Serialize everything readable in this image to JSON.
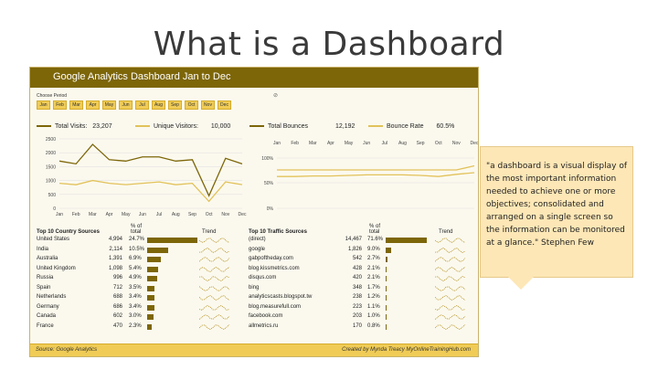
{
  "slide_title": "What is a Dashboard",
  "dashboard": {
    "title": "Google Analytics Dashboard Jan to Dec",
    "period_label": "Choose Period",
    "filter_icon": "filter-clear-icon",
    "months": [
      "Jan",
      "Feb",
      "Mar",
      "Apr",
      "May",
      "Jun",
      "Jul",
      "Aug",
      "Sep",
      "Oct",
      "Nov",
      "Dec"
    ],
    "kpis": {
      "total_visits_label": "Total Visits:",
      "total_visits_value": "23,207",
      "unique_visitors_label": "Unique Visitors:",
      "unique_visitors_value": "10,000",
      "total_bounces_label": "Total Bounces",
      "total_bounces_value": "12,192",
      "bounce_rate_label": "Bounce Rate",
      "bounce_rate_value": "60.5%"
    },
    "colors": {
      "brand": "#7d6608",
      "accent": "#f0cc56",
      "line_light": "#e2c25a"
    },
    "country_table": {
      "title": "Top 10 Country Sources",
      "pct_header": "% of total",
      "trend_header": "Trend",
      "rows": [
        {
          "name": "United States",
          "value": "4,994",
          "pct": "24.7%",
          "share": 0.247
        },
        {
          "name": "India",
          "value": "2,114",
          "pct": "10.5%",
          "share": 0.105
        },
        {
          "name": "Australia",
          "value": "1,391",
          "pct": "6.9%",
          "share": 0.069
        },
        {
          "name": "United Kingdom",
          "value": "1,098",
          "pct": "5.4%",
          "share": 0.054
        },
        {
          "name": "Russia",
          "value": "996",
          "pct": "4.9%",
          "share": 0.049
        },
        {
          "name": "Spain",
          "value": "712",
          "pct": "3.5%",
          "share": 0.035
        },
        {
          "name": "Netherlands",
          "value": "688",
          "pct": "3.4%",
          "share": 0.034
        },
        {
          "name": "Germany",
          "value": "686",
          "pct": "3.4%",
          "share": 0.034
        },
        {
          "name": "Canada",
          "value": "602",
          "pct": "3.0%",
          "share": 0.03
        },
        {
          "name": "France",
          "value": "470",
          "pct": "2.3%",
          "share": 0.023
        }
      ]
    },
    "traffic_table": {
      "title": "Top 10 Traffic Sources",
      "pct_header": "% of total",
      "trend_header": "Trend",
      "rows": [
        {
          "name": "(direct)",
          "value": "14,467",
          "pct": "71.6%",
          "share": 0.716
        },
        {
          "name": "google",
          "value": "1,826",
          "pct": "9.0%",
          "share": 0.09
        },
        {
          "name": "gabpoftheday.com",
          "value": "542",
          "pct": "2.7%",
          "share": 0.027
        },
        {
          "name": "blog.kissmetrics.com",
          "value": "428",
          "pct": "2.1%",
          "share": 0.021
        },
        {
          "name": "disqus.com",
          "value": "420",
          "pct": "2.1%",
          "share": 0.021
        },
        {
          "name": "bing",
          "value": "348",
          "pct": "1.7%",
          "share": 0.017
        },
        {
          "name": "analyticscasts.blogspot.tw",
          "value": "238",
          "pct": "1.2%",
          "share": 0.012
        },
        {
          "name": "blog.measurefull.com",
          "value": "223",
          "pct": "1.1%",
          "share": 0.011
        },
        {
          "name": "facebook.com",
          "value": "203",
          "pack": "",
          "pct": "1.0%",
          "share": 0.01
        },
        {
          "name": "allmetrics.ru",
          "value": "170",
          "pct": "0.8%",
          "share": 0.008
        }
      ]
    },
    "footer_source": "Source: Google Analytics",
    "footer_credit": "Created by Mynda Treacy  MyOnlineTrainingHub.com"
  },
  "chart_data": [
    {
      "type": "line",
      "categories": [
        "Jan",
        "Feb",
        "Mar",
        "Apr",
        "May",
        "Jun",
        "Jul",
        "Aug",
        "Sep",
        "Oct",
        "Nov",
        "Dec"
      ],
      "series": [
        {
          "name": "Total Visits",
          "values": [
            1700,
            1600,
            2300,
            1750,
            1700,
            1850,
            1850,
            1700,
            1750,
            450,
            1800,
            1600
          ]
        },
        {
          "name": "Unique Visitors",
          "values": [
            900,
            850,
            1000,
            900,
            850,
            900,
            950,
            850,
            900,
            250,
            950,
            850
          ]
        }
      ],
      "ylim": [
        0,
        2500
      ],
      "yticks": [
        "0",
        "500",
        "1000",
        "1500",
        "2000",
        "2500"
      ]
    },
    {
      "type": "line",
      "categories": [
        "Jan",
        "Feb",
        "Mar",
        "Apr",
        "May",
        "Jun",
        "Jul",
        "Aug",
        "Sep",
        "Oct",
        "Nov",
        "Dec"
      ],
      "series": [
        {
          "name": "Total Bounces",
          "values": [
            1000,
            1000,
            1000,
            1000,
            1000,
            1000,
            1000,
            1000,
            1000,
            1000,
            1000,
            1150
          ]
        },
        {
          "name": "Bounce Rate",
          "values": [
            0.58,
            0.58,
            0.59,
            0.59,
            0.6,
            0.61,
            0.61,
            0.61,
            0.6,
            0.58,
            0.62,
            0.65
          ]
        }
      ],
      "yticks": [
        "0%",
        "50%",
        "100%"
      ],
      "ylabels_left": [
        "0",
        "500",
        "1000"
      ]
    }
  ]
}
